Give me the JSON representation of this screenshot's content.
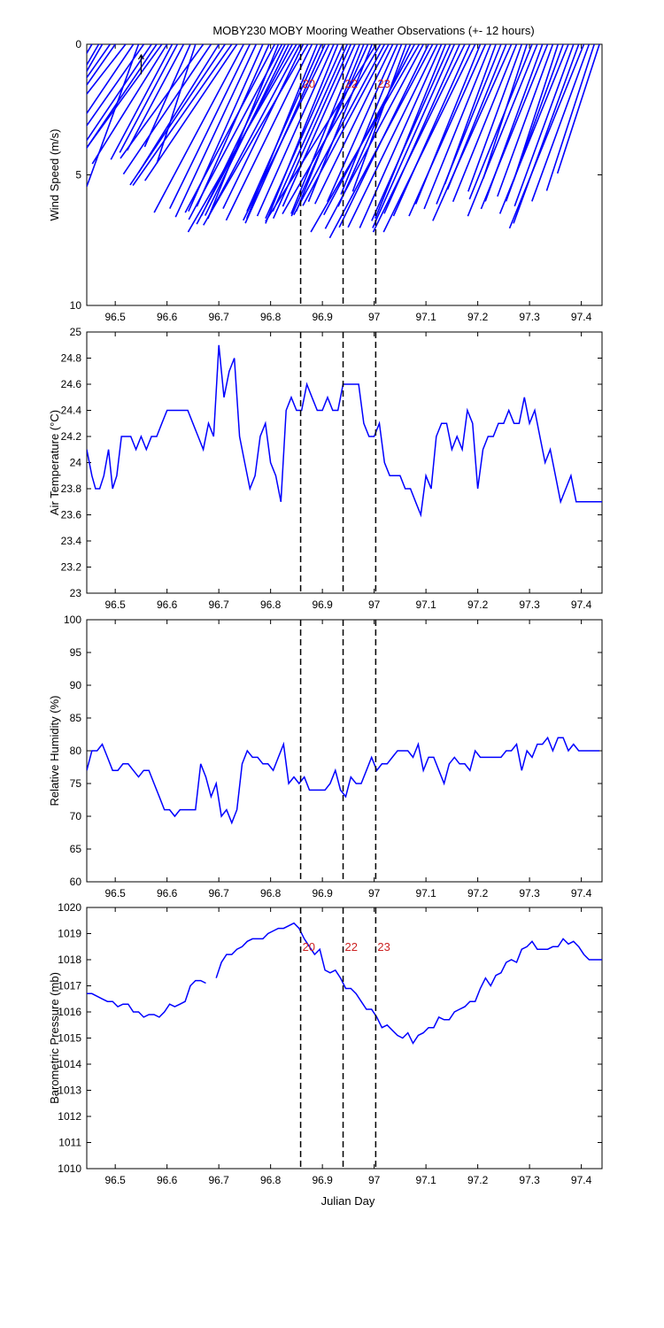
{
  "figure": {
    "title": "MOBY230 MOBY Mooring Weather Observations (+- 12 hours)",
    "xlabel": "Julian Day",
    "event_lines": [
      {
        "x": 96.858,
        "label": "20"
      },
      {
        "x": 96.94,
        "label": "22"
      },
      {
        "x": 97.003,
        "label": "23"
      }
    ]
  },
  "chart_data": [
    {
      "type": "line",
      "variant": "wind-stick",
      "ylabel": "Wind Speed (m/s)",
      "xlim": [
        96.445,
        97.44
      ],
      "ylim": [
        0,
        10
      ],
      "y_reversed": true,
      "xticks": [
        "96.5",
        "96.6",
        "96.7",
        "96.8",
        "96.9",
        "97",
        "97.1",
        "97.2",
        "97.3",
        "97.4"
      ],
      "yticks": [
        "0",
        "5",
        "10"
      ],
      "event_labels_shown": true,
      "series_color": "#0000ff",
      "x": [
        96.455,
        96.468,
        96.475,
        96.49,
        96.5,
        96.52,
        96.535,
        96.545,
        96.555,
        96.57,
        96.58,
        96.59,
        96.6,
        96.61,
        96.62,
        96.632,
        96.645,
        96.655,
        96.67,
        96.685,
        96.7,
        96.712,
        96.725,
        96.735,
        96.748,
        96.76,
        96.772,
        96.785,
        96.797,
        96.808,
        96.815,
        96.822,
        96.828,
        96.835,
        96.842,
        96.85,
        96.857,
        96.863,
        96.872,
        96.88,
        96.89,
        96.898,
        96.905,
        96.913,
        96.922,
        96.93,
        96.94,
        96.948,
        96.955,
        96.963,
        96.972,
        96.98,
        96.988,
        96.996,
        97.004,
        97.012,
        97.02,
        97.028,
        97.036,
        97.045,
        97.053,
        97.062,
        97.07,
        97.078,
        97.087,
        97.095,
        97.105,
        97.113,
        97.122,
        97.13,
        97.138,
        97.147,
        97.155,
        97.165,
        97.175,
        97.185,
        97.195,
        97.205,
        97.215,
        97.225,
        97.235,
        97.245,
        97.255,
        97.265,
        97.275,
        97.285,
        97.295,
        97.305,
        97.315,
        97.325,
        97.335,
        97.345,
        97.355,
        97.365,
        97.375,
        97.385,
        97.395,
        97.405,
        97.415,
        97.425,
        97.435
      ],
      "speed": [
        8.0,
        8.0,
        8.0,
        7.5,
        7.0,
        8.3,
        7.4,
        5.8,
        6.6,
        6.3,
        5.7,
        5.8,
        5.4,
        5.0,
        4.7,
        4.6,
        4.3,
        4.8,
        5.4,
        6.0,
        5.8,
        6.5,
        6.6,
        6.3,
        7.3,
        7.0,
        7.3,
        7.0,
        6.8,
        7.3,
        7.2,
        7.6,
        7.3,
        7.3,
        7.8,
        8.3,
        7.4,
        7.0,
        8.0,
        7.5,
        7.2,
        7.0,
        7.5,
        7.5,
        7.2,
        7.4,
        7.3,
        7.0,
        7.3,
        6.8,
        7.0,
        6.9,
        7.2,
        6.5,
        8.0,
        7.5,
        7.4,
        7.0,
        6.8,
        6.6,
        6.2,
        6.0,
        6.8,
        7.4,
        8.3,
        8.0,
        7.8,
        8.4,
        7.8,
        7.7,
        7.2,
        7.4,
        7.7,
        7.1,
        8.0,
        7.2,
        8.0,
        6.6,
        7.2,
        6.8,
        5.7,
        6.6,
        6.0,
        7.4,
        6.5,
        6.0,
        5.4,
        6.4,
        7.1,
        6.4,
        6.8,
        6.2,
        5.5,
        6.4,
        7.0,
        6.6,
        7.3,
        7.6,
        6.4,
        5.9,
        5.2
      ],
      "direction_deg": [
        30,
        30,
        30,
        35,
        35,
        38,
        34,
        20,
        35,
        34,
        34,
        36,
        32,
        28,
        28,
        28,
        24,
        18,
        36,
        34,
        32,
        34,
        35,
        34,
        28,
        26,
        25,
        24,
        24,
        28,
        22,
        28,
        26,
        26,
        28,
        30,
        28,
        26,
        30,
        26,
        22,
        24,
        24,
        26,
        24,
        22,
        24,
        24,
        24,
        24,
        22,
        22,
        24,
        22,
        32,
        30,
        28,
        28,
        26,
        24,
        22,
        20,
        24,
        28,
        30,
        28,
        26,
        28,
        26,
        24,
        22,
        24,
        24,
        24,
        26,
        24,
        26,
        22,
        24,
        22,
        20,
        22,
        22,
        24,
        22,
        20,
        18,
        22,
        22,
        20,
        22,
        20,
        18,
        20,
        22,
        20,
        20,
        22,
        20,
        18,
        18
      ]
    },
    {
      "type": "line",
      "ylabel": "Air Temperature (°C)",
      "xlim": [
        96.445,
        97.44
      ],
      "ylim": [
        23,
        25
      ],
      "xticks": [
        "96.5",
        "96.6",
        "96.7",
        "96.8",
        "96.9",
        "97",
        "97.1",
        "97.2",
        "97.3",
        "97.4"
      ],
      "yticks": [
        "23",
        "23.2",
        "23.4",
        "23.6",
        "23.8",
        "24",
        "24.2",
        "24.4",
        "24.6",
        "24.8",
        "25"
      ],
      "event_labels_shown": false,
      "series_color": "#0000ff",
      "x": [
        96.445,
        96.455,
        96.462,
        96.47,
        96.478,
        96.487,
        96.495,
        96.503,
        96.512,
        96.52,
        96.53,
        96.54,
        96.55,
        96.56,
        96.57,
        96.58,
        96.59,
        96.6,
        96.61,
        96.62,
        96.63,
        96.64,
        96.65,
        96.66,
        96.67,
        96.68,
        96.69,
        96.7,
        96.71,
        96.72,
        96.73,
        96.74,
        96.75,
        96.76,
        96.77,
        96.78,
        96.79,
        96.8,
        96.81,
        96.82,
        96.83,
        96.84,
        96.85,
        96.86,
        96.87,
        96.88,
        96.89,
        96.9,
        96.91,
        96.92,
        96.93,
        96.94,
        96.95,
        96.96,
        96.97,
        96.98,
        96.99,
        97.0,
        97.01,
        97.02,
        97.03,
        97.04,
        97.05,
        97.06,
        97.07,
        97.08,
        97.09,
        97.1,
        97.11,
        97.12,
        97.13,
        97.14,
        97.15,
        97.16,
        97.17,
        97.18,
        97.19,
        97.2,
        97.21,
        97.22,
        97.23,
        97.24,
        97.25,
        97.26,
        97.27,
        97.28,
        97.29,
        97.3,
        97.31,
        97.32,
        97.33,
        97.34,
        97.35,
        97.36,
        97.37,
        97.38,
        97.39,
        97.4,
        97.41,
        97.42,
        97.43,
        97.44
      ],
      "values": [
        24.1,
        23.9,
        23.8,
        23.8,
        23.9,
        24.1,
        23.8,
        23.9,
        24.2,
        24.2,
        24.2,
        24.1,
        24.2,
        24.1,
        24.2,
        24.2,
        24.3,
        24.4,
        24.4,
        24.4,
        24.4,
        24.4,
        24.3,
        24.2,
        24.1,
        24.3,
        24.2,
        24.9,
        24.5,
        24.7,
        24.8,
        24.2,
        24.0,
        23.8,
        23.9,
        24.2,
        24.3,
        24.0,
        23.9,
        23.7,
        24.4,
        24.5,
        24.4,
        24.4,
        24.6,
        24.5,
        24.4,
        24.4,
        24.5,
        24.4,
        24.4,
        24.6,
        24.6,
        24.6,
        24.6,
        24.3,
        24.2,
        24.2,
        24.3,
        24.0,
        23.9,
        23.9,
        23.9,
        23.8,
        23.8,
        23.7,
        23.6,
        23.9,
        23.8,
        24.2,
        24.3,
        24.3,
        24.1,
        24.2,
        24.1,
        24.4,
        24.3,
        23.8,
        24.1,
        24.2,
        24.2,
        24.3,
        24.3,
        24.4,
        24.3,
        24.3,
        24.5,
        24.3,
        24.4,
        24.2,
        24.0,
        24.1,
        23.9,
        23.7,
        23.8,
        23.9,
        23.7,
        23.7,
        23.7,
        23.7,
        23.7,
        23.7
      ]
    },
    {
      "type": "line",
      "ylabel": "Relative Humidity (%)",
      "xlim": [
        96.445,
        97.44
      ],
      "ylim": [
        60,
        100
      ],
      "xticks": [
        "96.5",
        "96.6",
        "96.7",
        "96.8",
        "96.9",
        "97",
        "97.1",
        "97.2",
        "97.3",
        "97.4"
      ],
      "yticks": [
        "60",
        "65",
        "70",
        "75",
        "80",
        "85",
        "90",
        "95",
        "100"
      ],
      "event_labels_shown": false,
      "series_color": "#0000ff",
      "x": [
        96.445,
        96.455,
        96.465,
        96.475,
        96.485,
        96.495,
        96.505,
        96.515,
        96.525,
        96.535,
        96.545,
        96.555,
        96.565,
        96.575,
        96.585,
        96.595,
        96.605,
        96.615,
        96.625,
        96.635,
        96.645,
        96.655,
        96.665,
        96.675,
        96.685,
        96.695,
        96.705,
        96.715,
        96.725,
        96.735,
        96.745,
        96.755,
        96.765,
        96.775,
        96.785,
        96.795,
        96.805,
        96.815,
        96.825,
        96.835,
        96.845,
        96.855,
        96.865,
        96.875,
        96.885,
        96.895,
        96.905,
        96.915,
        96.925,
        96.935,
        96.945,
        96.955,
        96.965,
        96.975,
        96.985,
        96.995,
        97.005,
        97.015,
        97.025,
        97.035,
        97.045,
        97.055,
        97.065,
        97.075,
        97.085,
        97.095,
        97.105,
        97.115,
        97.125,
        97.135,
        97.145,
        97.155,
        97.165,
        97.175,
        97.185,
        97.195,
        97.205,
        97.215,
        97.225,
        97.235,
        97.245,
        97.255,
        97.265,
        97.275,
        97.285,
        97.295,
        97.305,
        97.315,
        97.325,
        97.335,
        97.345,
        97.355,
        97.365,
        97.375,
        97.385,
        97.395,
        97.405,
        97.415,
        97.425,
        97.435
      ],
      "values": [
        77,
        80,
        80,
        81,
        79,
        77,
        77,
        78,
        78,
        77,
        76,
        77,
        77,
        75,
        73,
        71,
        71,
        70,
        71,
        71,
        71,
        71,
        78,
        76,
        73,
        75,
        70,
        71,
        69,
        71,
        78,
        80,
        79,
        79,
        78,
        78,
        77,
        79,
        81,
        75,
        76,
        75,
        76,
        74,
        74,
        74,
        74,
        75,
        77,
        74,
        73,
        76,
        75,
        75,
        77,
        79,
        77,
        78,
        78,
        79,
        80,
        80,
        80,
        79,
        81,
        77,
        79,
        79,
        77,
        75,
        78,
        79,
        78,
        78,
        77,
        80,
        79,
        79,
        79,
        79,
        79,
        80,
        80,
        81,
        77,
        80,
        79,
        81,
        81,
        82,
        80,
        82,
        82,
        80,
        81,
        80,
        80,
        80,
        80,
        80
      ]
    },
    {
      "type": "line",
      "ylabel": "Barometric Pressure (mb)",
      "xlim": [
        96.445,
        97.44
      ],
      "ylim": [
        1010,
        1020
      ],
      "xticks": [
        "96.5",
        "96.6",
        "96.7",
        "96.8",
        "96.9",
        "97",
        "97.1",
        "97.2",
        "97.3",
        "97.4"
      ],
      "yticks": [
        "1010",
        "1011",
        "1012",
        "1013",
        "1014",
        "1015",
        "1016",
        "1017",
        "1018",
        "1019",
        "1020"
      ],
      "event_labels_shown": true,
      "series_color": "#0000ff",
      "segments": [
        {
          "x": [
            96.445,
            96.455,
            96.465,
            96.475,
            96.485,
            96.495,
            96.505,
            96.515,
            96.525,
            96.535,
            96.545,
            96.555,
            96.565,
            96.575,
            96.585,
            96.595,
            96.605,
            96.615,
            96.625,
            96.635,
            96.645,
            96.655,
            96.665,
            96.675
          ],
          "values": [
            1016.7,
            1016.7,
            1016.6,
            1016.5,
            1016.4,
            1016.4,
            1016.2,
            1016.3,
            1016.3,
            1016.0,
            1016.0,
            1015.8,
            1015.9,
            1015.9,
            1015.8,
            1016.0,
            1016.3,
            1016.2,
            1016.3,
            1016.4,
            1017.0,
            1017.2,
            1017.2,
            1017.1
          ]
        },
        {
          "x": [
            96.695,
            96.705,
            96.715,
            96.725,
            96.735,
            96.745,
            96.755,
            96.765,
            96.775,
            96.785,
            96.795,
            96.805,
            96.815,
            96.825,
            96.835,
            96.845,
            96.855,
            96.865,
            96.875,
            96.885,
            96.895,
            96.905,
            96.915,
            96.925,
            96.935,
            96.945,
            96.955,
            96.965,
            96.975,
            96.985,
            96.995,
            97.005,
            97.015,
            97.025,
            97.035,
            97.045,
            97.055,
            97.065,
            97.075,
            97.085,
            97.095,
            97.105,
            97.115,
            97.125,
            97.135,
            97.145,
            97.155,
            97.165,
            97.175,
            97.185,
            97.195,
            97.205,
            97.215,
            97.225,
            97.235,
            97.245,
            97.255,
            97.265,
            97.275,
            97.285,
            97.295,
            97.305,
            97.315,
            97.325,
            97.335,
            97.345,
            97.355,
            97.365,
            97.375,
            97.385,
            97.395,
            97.405,
            97.415,
            97.425,
            97.435,
            97.44
          ],
          "values": [
            1017.3,
            1017.9,
            1018.2,
            1018.2,
            1018.4,
            1018.5,
            1018.7,
            1018.8,
            1018.8,
            1018.8,
            1019.0,
            1019.1,
            1019.2,
            1019.2,
            1019.3,
            1019.4,
            1019.2,
            1018.8,
            1018.5,
            1018.2,
            1018.4,
            1017.6,
            1017.5,
            1017.6,
            1017.3,
            1016.9,
            1016.9,
            1016.7,
            1016.4,
            1016.1,
            1016.1,
            1015.8,
            1015.4,
            1015.5,
            1015.3,
            1015.1,
            1015.0,
            1015.2,
            1014.8,
            1015.1,
            1015.2,
            1015.4,
            1015.4,
            1015.8,
            1015.7,
            1015.7,
            1016.0,
            1016.1,
            1016.2,
            1016.4,
            1016.4,
            1016.9,
            1017.3,
            1017.0,
            1017.4,
            1017.5,
            1017.9,
            1018.0,
            1017.9,
            1018.4,
            1018.5,
            1018.7,
            1018.4,
            1018.4,
            1018.4,
            1018.5,
            1018.5,
            1018.8,
            1018.6,
            1018.7,
            1018.5,
            1018.2,
            1018.0,
            1018.0,
            1018.0,
            1018.0
          ]
        }
      ]
    }
  ],
  "colors": {
    "series": "#0000ff",
    "axes": "#000000",
    "event_label": "#cc2222",
    "background": "#ffffff"
  }
}
